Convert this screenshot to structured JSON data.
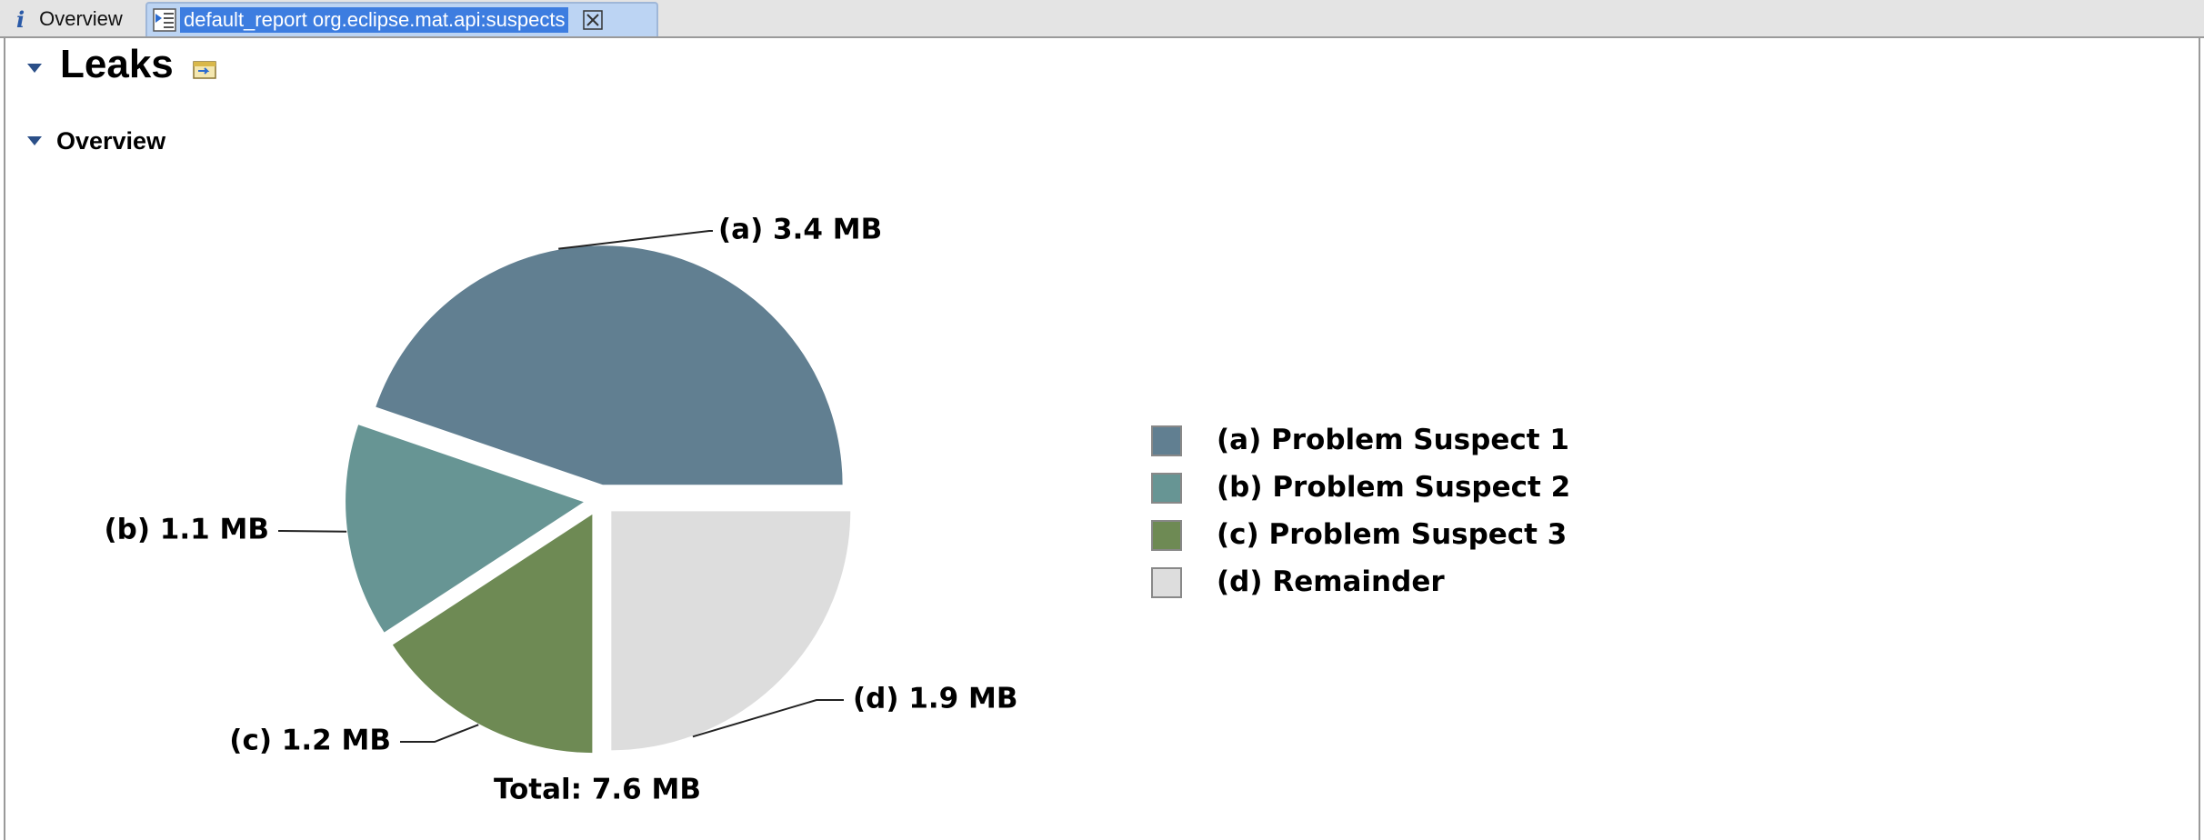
{
  "tabs": {
    "overview_label": "Overview",
    "report_label": "default_report  org.eclipse.mat.api:suspects"
  },
  "page": {
    "title": "Leaks",
    "section_title": "Overview"
  },
  "colors": {
    "a": "#617f91",
    "b": "#679594",
    "c": "#6e8a54",
    "d": "#dddddd"
  },
  "chart_data": {
    "type": "pie",
    "title": "",
    "slices": [
      {
        "key": "a",
        "label": "(a)  3.4 MB",
        "value": 3.4
      },
      {
        "key": "b",
        "label": "(b)  1.1 MB",
        "value": 1.1
      },
      {
        "key": "c",
        "label": "(c)  1.2 MB",
        "value": 1.2
      },
      {
        "key": "d",
        "label": "(d)  1.9 MB",
        "value": 1.9
      }
    ],
    "total_label": "Total: 7.6 MB",
    "legend": [
      {
        "key": "a",
        "label": "(a)  Problem Suspect 1"
      },
      {
        "key": "b",
        "label": "(b)  Problem Suspect 2"
      },
      {
        "key": "c",
        "label": "(c)  Problem Suspect 3"
      },
      {
        "key": "d",
        "label": "(d)  Remainder"
      }
    ],
    "legend_position": "right"
  }
}
